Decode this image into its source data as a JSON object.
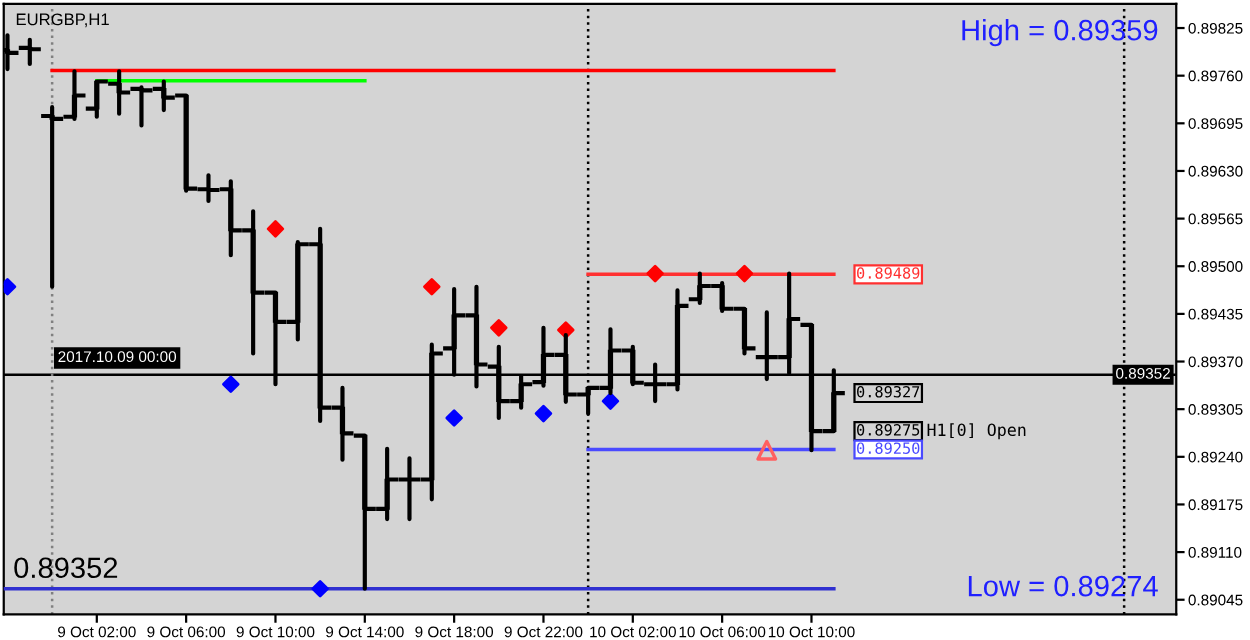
{
  "chart_data": {
    "type": "candlestick",
    "title": "EURGBP,H1",
    "x": [
      "2017-10-08T22:00",
      "2017-10-08T23:00",
      "2017-10-09T00:00",
      "2017-10-09T01:00",
      "2017-10-09T02:00",
      "2017-10-09T03:00",
      "2017-10-09T04:00",
      "2017-10-09T05:00",
      "2017-10-09T06:00",
      "2017-10-09T07:00",
      "2017-10-09T08:00",
      "2017-10-09T09:00",
      "2017-10-09T10:00",
      "2017-10-09T11:00",
      "2017-10-09T12:00",
      "2017-10-09T13:00",
      "2017-10-09T14:00",
      "2017-10-09T15:00",
      "2017-10-09T16:00",
      "2017-10-09T17:00",
      "2017-10-09T18:00",
      "2017-10-09T19:00",
      "2017-10-09T20:00",
      "2017-10-09T21:00",
      "2017-10-09T22:00",
      "2017-10-09T23:00",
      "2017-10-10T00:00",
      "2017-10-10T01:00",
      "2017-10-10T02:00",
      "2017-10-10T03:00",
      "2017-10-10T04:00",
      "2017-10-10T05:00",
      "2017-10-10T06:00",
      "2017-10-10T07:00",
      "2017-10-10T08:00",
      "2017-10-10T09:00",
      "2017-10-10T10:00",
      "2017-10-10T11:00"
    ],
    "ohlc": [
      [
        0.89795,
        0.89815,
        0.89769,
        0.89791
      ],
      [
        0.89798,
        0.89809,
        0.89776,
        0.89796
      ],
      [
        0.89705,
        0.89717,
        0.89472,
        0.89701
      ],
      [
        0.89704,
        0.89766,
        0.89701,
        0.89733
      ],
      [
        0.89715,
        0.89752,
        0.89704,
        0.89752
      ],
      [
        0.89749,
        0.89766,
        0.89708,
        0.89737
      ],
      [
        0.89742,
        0.89744,
        0.89692,
        0.8974
      ],
      [
        0.89742,
        0.89752,
        0.89713,
        0.8973
      ],
      [
        0.89733,
        0.89733,
        0.89603,
        0.89606
      ],
      [
        0.89605,
        0.89624,
        0.89589,
        0.89604
      ],
      [
        0.89605,
        0.89616,
        0.89515,
        0.89549
      ],
      [
        0.89549,
        0.89575,
        0.89381,
        0.89464
      ],
      [
        0.89464,
        0.89464,
        0.89339,
        0.89424
      ],
      [
        0.89424,
        0.89533,
        0.894,
        0.8953
      ],
      [
        0.8953,
        0.89551,
        0.89289,
        0.89307
      ],
      [
        0.89307,
        0.89334,
        0.89236,
        0.89272
      ],
      [
        0.89269,
        0.89269,
        0.8906,
        0.89169
      ],
      [
        0.89169,
        0.89251,
        0.89155,
        0.89209
      ],
      [
        0.89209,
        0.89238,
        0.89155,
        0.89209
      ],
      [
        0.89209,
        0.89393,
        0.89182,
        0.89381
      ],
      [
        0.89388,
        0.89469,
        0.89352,
        0.89433
      ],
      [
        0.89433,
        0.89472,
        0.89336,
        0.89366
      ],
      [
        0.89363,
        0.8939,
        0.89293,
        0.89316
      ],
      [
        0.89316,
        0.8935,
        0.89307,
        0.89339
      ],
      [
        0.89342,
        0.89416,
        0.89337,
        0.89379
      ],
      [
        0.89379,
        0.89406,
        0.89315,
        0.89325
      ],
      [
        0.89325,
        0.89334,
        0.89299,
        0.89334
      ],
      [
        0.89334,
        0.89414,
        0.89327,
        0.89385
      ],
      [
        0.89385,
        0.8939,
        0.89339,
        0.89341
      ],
      [
        0.89339,
        0.89366,
        0.89316,
        0.89339
      ],
      [
        0.89339,
        0.89467,
        0.89332,
        0.89446
      ],
      [
        0.89455,
        0.8949,
        0.8945,
        0.89473
      ],
      [
        0.89473,
        0.89477,
        0.89439,
        0.89442
      ],
      [
        0.89442,
        0.89442,
        0.89381,
        0.89388
      ],
      [
        0.89376,
        0.89437,
        0.89346,
        0.89376
      ],
      [
        0.89376,
        0.8949,
        0.89354,
        0.89428
      ],
      [
        0.8942,
        0.8942,
        0.89249,
        0.89275
      ],
      [
        0.89275,
        0.89358,
        0.89275,
        0.89327
      ]
    ],
    "color": "#000000",
    "series": [
      {
        "type": "scatter",
        "marker": "diamond",
        "color": "#ff0000",
        "x": [
          "2017-10-09T10:00",
          "2017-10-09T17:00",
          "2017-10-09T20:00",
          "2017-10-09T23:00",
          "2017-10-10T03:00",
          "2017-10-10T07:00"
        ],
        "values": [
          0.89551,
          0.89472,
          0.89416,
          0.89413,
          0.8949,
          0.8949
        ]
      },
      {
        "type": "scatter",
        "marker": "diamond",
        "color": "#0000ff",
        "x": [
          "2017-10-08T22:00",
          "2017-10-09T08:00",
          "2017-10-09T12:00",
          "2017-10-09T18:00",
          "2017-10-09T22:00",
          "2017-10-10T01:00"
        ],
        "values": [
          0.89472,
          0.89339,
          0.8906,
          0.89293,
          0.89299,
          0.89316
        ]
      },
      {
        "type": "scatter",
        "marker": "triangle",
        "color": "#ff6060",
        "x": [
          "2017-10-10T08:00"
        ],
        "values": [
          0.89249
        ]
      },
      {
        "type": "line",
        "color": "#ff0000",
        "x": [
          "2017-10-09T00:00",
          "2017-10-10T11:00"
        ],
        "values": [
          0.89767,
          0.89767
        ]
      },
      {
        "type": "line",
        "color": "#00ff00",
        "x": [
          "2017-10-09T02:00",
          "2017-10-09T14:00"
        ],
        "values": [
          0.89753,
          0.89753
        ]
      },
      {
        "type": "line",
        "color": "#ff3030",
        "x": [
          "2017-10-10T00:00",
          "2017-10-10T11:00"
        ],
        "values": [
          0.89489,
          0.89489
        ]
      },
      {
        "type": "line",
        "color": "#4a4aff",
        "x": [
          "2017-10-10T00:00",
          "2017-10-10T11:00"
        ],
        "values": [
          0.8925,
          0.8925
        ]
      },
      {
        "type": "line",
        "color": "#3030d0",
        "x": [
          "2017-10-08T21:50",
          "2017-10-10T11:00"
        ],
        "values": [
          0.8906,
          0.8906
        ]
      }
    ],
    "ref_lines": [
      {
        "axis": "y",
        "value": 0.89352,
        "label": "0.89352",
        "color": "#000000",
        "line_style": "solid"
      },
      {
        "axis": "x",
        "value": "2017-10-09T00:00",
        "label": "2017.10.09 00:00",
        "color": "#808080",
        "line_style": "dotted"
      },
      {
        "axis": "x",
        "value": "2017-10-10T00:00",
        "color": "#000000",
        "line_style": "dotted"
      },
      {
        "axis": "x",
        "value": "2017-10-11T00:00",
        "color": "#000000",
        "line_style": "dotted"
      }
    ],
    "annotations": [
      "High = 0.89359",
      "Low = 0.89274",
      "0.89352",
      "H1[0] Open",
      {
        "text": "0.89489",
        "x": "2017-10-10T11:00",
        "y": 0.89489
      },
      {
        "text": "0.89327",
        "x": "2017-10-10T11:00",
        "y": 0.89327
      },
      {
        "text": "0.89275",
        "x": "2017-10-10T11:00",
        "y": 0.89275
      },
      {
        "text": "0.89250",
        "x": "2017-10-10T11:00",
        "y": 0.8925
      }
    ],
    "xlim": [
      "2017-10-08T21:50",
      "2017-10-11T02:20"
    ],
    "xticks": [
      {
        "value": "2017-10-09T02:00",
        "label": "9 Oct 02:00"
      },
      {
        "value": "2017-10-09T06:00",
        "label": "9 Oct 06:00"
      },
      {
        "value": "2017-10-09T10:00",
        "label": "9 Oct 10:00"
      },
      {
        "value": "2017-10-09T14:00",
        "label": "9 Oct 14:00"
      },
      {
        "value": "2017-10-09T18:00",
        "label": "9 Oct 18:00"
      },
      {
        "value": "2017-10-09T22:00",
        "label": "9 Oct 22:00"
      },
      {
        "value": "2017-10-10T02:00",
        "label": "10 Oct 02:00"
      },
      {
        "value": "2017-10-10T06:00",
        "label": "10 Oct 06:00"
      },
      {
        "value": "2017-10-10T10:00",
        "label": "10 Oct 10:00"
      }
    ],
    "ylim": [
      0.89025,
      0.89858
    ],
    "yticks": [
      0.89825,
      {
        "value": 0.8976,
        "label": "0.89760"
      },
      0.89695,
      {
        "value": 0.8963,
        "label": "0.89630"
      },
      0.89565,
      {
        "value": 0.895,
        "label": "0.89500"
      },
      0.89435,
      {
        "value": 0.8937,
        "label": "0.89370"
      },
      0.89305,
      {
        "value": 0.8924,
        "label": "0.89240"
      },
      0.89175,
      {
        "value": 0.8911,
        "label": "0.89110"
      },
      0.89045
    ],
    "grid": false,
    "legend": false
  }
}
